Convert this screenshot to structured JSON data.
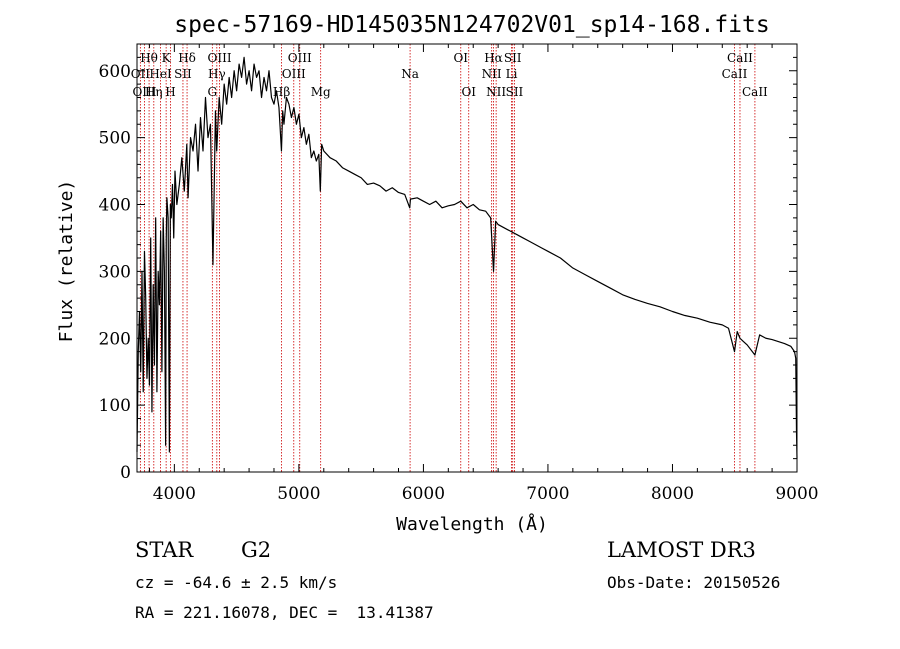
{
  "chart_data": {
    "type": "line",
    "title": "spec-57169-HD145035N124702V01_sp14-168.fits",
    "xlabel": "Wavelength (Å)",
    "ylabel": "Flux (relative)",
    "xlim": [
      3700,
      9000
    ],
    "ylim": [
      0,
      640
    ],
    "xticks": [
      4000,
      5000,
      6000,
      7000,
      8000,
      9000
    ],
    "yticks": [
      0,
      100,
      200,
      300,
      400,
      500,
      600
    ],
    "x_minor_step": 200,
    "y_minor_step": 20,
    "series": [
      {
        "name": "flux",
        "x": [
          3700,
          3710,
          3720,
          3730,
          3740,
          3750,
          3760,
          3770,
          3780,
          3790,
          3800,
          3810,
          3820,
          3830,
          3840,
          3850,
          3860,
          3870,
          3880,
          3890,
          3900,
          3910,
          3920,
          3930,
          3935,
          3940,
          3950,
          3960,
          3968,
          3975,
          3985,
          3995,
          4005,
          4020,
          4040,
          4060,
          4080,
          4100,
          4110,
          4130,
          4150,
          4170,
          4190,
          4210,
          4230,
          4250,
          4270,
          4290,
          4310,
          4330,
          4340,
          4360,
          4380,
          4400,
          4420,
          4440,
          4460,
          4480,
          4500,
          4520,
          4540,
          4560,
          4580,
          4600,
          4620,
          4640,
          4660,
          4680,
          4700,
          4720,
          4740,
          4760,
          4780,
          4800,
          4820,
          4840,
          4860,
          4870,
          4880,
          4900,
          4920,
          4940,
          4960,
          4980,
          5000,
          5020,
          5040,
          5060,
          5080,
          5100,
          5120,
          5140,
          5160,
          5172,
          5183,
          5200,
          5250,
          5300,
          5350,
          5400,
          5450,
          5500,
          5550,
          5600,
          5650,
          5700,
          5750,
          5800,
          5850,
          5890,
          5896,
          5950,
          6000,
          6050,
          6100,
          6150,
          6200,
          6250,
          6300,
          6350,
          6400,
          6450,
          6500,
          6540,
          6563,
          6580,
          6600,
          6650,
          6700,
          6750,
          6800,
          6850,
          6900,
          6950,
          7000,
          7100,
          7200,
          7300,
          7400,
          7500,
          7600,
          7700,
          7800,
          7900,
          8000,
          8100,
          8200,
          8300,
          8400,
          8450,
          8498,
          8520,
          8542,
          8570,
          8600,
          8662,
          8700,
          8750,
          8800,
          8850,
          8900,
          8950,
          8980,
          8990,
          8996,
          9000
        ],
        "values": [
          30,
          180,
          240,
          150,
          300,
          120,
          330,
          260,
          140,
          200,
          130,
          350,
          90,
          280,
          160,
          380,
          120,
          300,
          250,
          360,
          150,
          380,
          300,
          40,
          350,
          410,
          380,
          30,
          400,
          380,
          430,
          350,
          450,
          400,
          430,
          470,
          420,
          490,
          410,
          500,
          480,
          520,
          450,
          530,
          480,
          560,
          500,
          520,
          310,
          540,
          480,
          560,
          520,
          580,
          550,
          590,
          560,
          600,
          570,
          610,
          590,
          620,
          580,
          600,
          570,
          610,
          590,
          600,
          560,
          590,
          570,
          600,
          560,
          550,
          570,
          545,
          480,
          540,
          520,
          560,
          550,
          530,
          545,
          520,
          535,
          500,
          515,
          490,
          505,
          470,
          480,
          465,
          475,
          420,
          490,
          480,
          470,
          465,
          455,
          450,
          445,
          440,
          430,
          432,
          428,
          420,
          425,
          418,
          415,
          395,
          408,
          410,
          405,
          400,
          405,
          395,
          398,
          400,
          405,
          395,
          400,
          392,
          390,
          380,
          300,
          375,
          370,
          365,
          360,
          355,
          350,
          345,
          340,
          335,
          330,
          320,
          305,
          295,
          285,
          275,
          265,
          258,
          252,
          247,
          240,
          234,
          230,
          224,
          220,
          215,
          180,
          210,
          200,
          195,
          190,
          175,
          205,
          200,
          198,
          195,
          192,
          188,
          180,
          170,
          60,
          20
        ]
      }
    ],
    "spectral_lines": [
      {
        "label": "Hθ",
        "wavelength": 3797,
        "row": 1
      },
      {
        "label": "OII",
        "wavelength": 3727,
        "row": 2
      },
      {
        "label": "OIII",
        "wavelength": 3760,
        "row": 3
      },
      {
        "label": "Hη",
        "wavelength": 3835,
        "row": 3
      },
      {
        "label": "HeI",
        "wavelength": 3889,
        "row": 2
      },
      {
        "label": "K",
        "wavelength": 3934,
        "row": 1
      },
      {
        "label": "SII",
        "wavelength": 4069,
        "row": 2
      },
      {
        "label": "H",
        "wavelength": 3969,
        "row": 3
      },
      {
        "label": "Hδ",
        "wavelength": 4102,
        "row": 1
      },
      {
        "label": "OIII",
        "wavelength": 4363,
        "row": 1
      },
      {
        "label": "Hγ",
        "wavelength": 4341,
        "row": 2
      },
      {
        "label": "G",
        "wavelength": 4305,
        "row": 3
      },
      {
        "label": "Hβ",
        "wavelength": 4861,
        "row": 3
      },
      {
        "label": "OIII",
        "wavelength": 4959,
        "row": 2
      },
      {
        "label": "OIII",
        "wavelength": 5007,
        "row": 1
      },
      {
        "label": "Mg",
        "wavelength": 5175,
        "row": 3
      },
      {
        "label": "Na",
        "wavelength": 5893,
        "row": 2
      },
      {
        "label": "OI",
        "wavelength": 6300,
        "row": 1
      },
      {
        "label": "OI",
        "wavelength": 6364,
        "row": 3
      },
      {
        "label": "Hα",
        "wavelength": 6563,
        "row": 1
      },
      {
        "label": "NII",
        "wavelength": 6548,
        "row": 2
      },
      {
        "label": "NII",
        "wavelength": 6584,
        "row": 3
      },
      {
        "label": "SII",
        "wavelength": 6717,
        "row": 1
      },
      {
        "label": "Li",
        "wavelength": 6708,
        "row": 2
      },
      {
        "label": "SII",
        "wavelength": 6731,
        "row": 3
      },
      {
        "label": "CaII",
        "wavelength": 8498,
        "row": 2
      },
      {
        "label": "CaII",
        "wavelength": 8542,
        "row": 1
      },
      {
        "label": "CaII",
        "wavelength": 8662,
        "row": 3
      }
    ]
  },
  "info": {
    "object_class": "STAR",
    "subclass": "G2",
    "survey": "LAMOST DR3",
    "velocity": "cz = -64.6 ± 2.5 km/s",
    "obs_date": "Obs-Date: 20150526",
    "coords": "RA = 221.16078, DEC =  13.41387"
  },
  "colors": {
    "line": "#000000",
    "marker_line": "#cc0000",
    "background": "#ffffff"
  }
}
